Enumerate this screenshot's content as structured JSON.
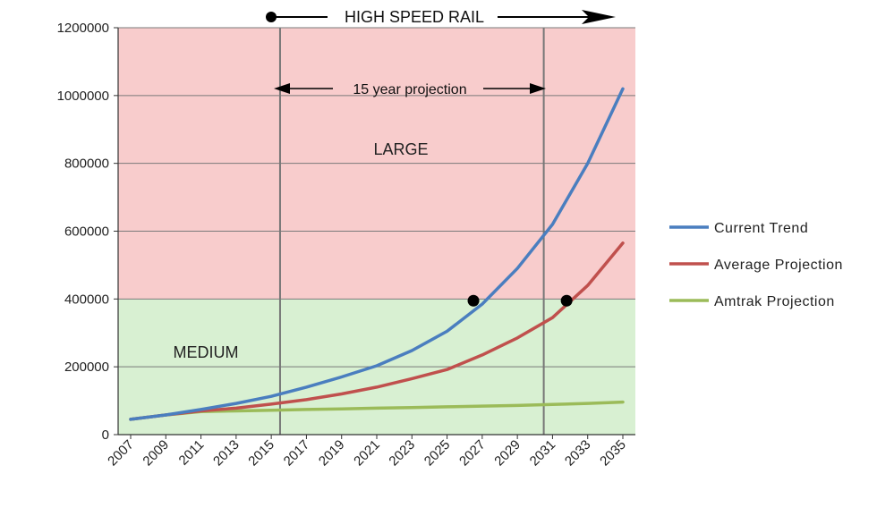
{
  "chart_data": {
    "type": "line",
    "x": [
      2007,
      2009,
      2011,
      2013,
      2015,
      2017,
      2019,
      2021,
      2023,
      2025,
      2027,
      2029,
      2031,
      2033,
      2035
    ],
    "x_tick_labels": [
      "2007",
      "2009",
      "2011",
      "2013",
      "2015",
      "2017",
      "2019",
      "2021",
      "2023",
      "2025",
      "2027",
      "2029",
      "2031",
      "2033",
      "2035"
    ],
    "ylim": [
      0,
      1200000
    ],
    "y_ticks": [
      0,
      200000,
      400000,
      600000,
      800000,
      1000000,
      1200000
    ],
    "y_tick_labels": [
      "0",
      "200000",
      "400000",
      "600000",
      "800000",
      "1000000",
      "1200000"
    ],
    "xlabel": "",
    "ylabel": "",
    "grid": true,
    "legend_position": "right",
    "series": [
      {
        "name": "Current Trend",
        "color": "#4a7ebf",
        "values": [
          45000,
          58000,
          74000,
          92000,
          113000,
          140000,
          170000,
          203000,
          248000,
          305000,
          385000,
          490000,
          620000,
          800000,
          1020000
        ]
      },
      {
        "name": "Average Projection",
        "color": "#c0504d",
        "values": [
          45000,
          58000,
          70000,
          78000,
          90000,
          103000,
          120000,
          140000,
          165000,
          192000,
          235000,
          285000,
          345000,
          440000,
          565000
        ]
      },
      {
        "name": "Amtrak Projection",
        "color": "#9bbb59",
        "values": [
          45000,
          58000,
          68000,
          70000,
          72000,
          74000,
          76000,
          78000,
          80000,
          82000,
          84000,
          86000,
          89000,
          92000,
          96000
        ]
      }
    ],
    "bands": [
      {
        "label": "LARGE",
        "from": 400000,
        "to": 1200000,
        "color": "#f8cccc"
      },
      {
        "label": "MEDIUM",
        "from": 0,
        "to": 400000,
        "color": "#d8f0d2"
      }
    ],
    "vertical_lines": [
      2015.5,
      2030.5
    ],
    "markers": [
      {
        "x": 2026.5,
        "y": 395000
      },
      {
        "x": 2031.8,
        "y": 395000
      }
    ],
    "annotations": {
      "high_speed_rail": "HIGH SPEED RAIL",
      "projection": "15 year projection"
    }
  }
}
